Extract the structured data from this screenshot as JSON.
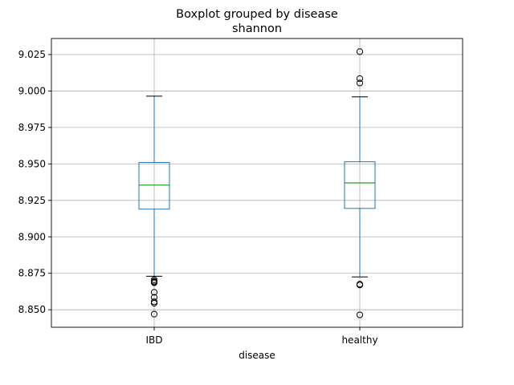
{
  "chart_data": {
    "type": "boxplot",
    "title_line1": "Boxplot grouped by disease",
    "title_line2": "shannon",
    "xlabel": "disease",
    "ylabel": "",
    "ylim": [
      8.838,
      9.036
    ],
    "yticks": [
      8.85,
      8.875,
      8.9,
      8.925,
      8.95,
      8.975,
      9.0,
      9.025
    ],
    "ytick_labels": [
      "8.850",
      "8.875",
      "8.900",
      "8.925",
      "8.950",
      "8.975",
      "9.000",
      "9.025"
    ],
    "grid": true,
    "categories": [
      "IBD",
      "healthy"
    ],
    "boxes": [
      {
        "category": "IBD",
        "whisker_low": 8.873,
        "q1": 8.919,
        "median": 8.9355,
        "q3": 8.951,
        "whisker_high": 8.9965,
        "outliers": [
          8.8705,
          8.8695,
          8.869,
          8.8685,
          8.862,
          8.8585,
          8.8555,
          8.8545,
          8.847
        ]
      },
      {
        "category": "healthy",
        "whisker_low": 8.8725,
        "q1": 8.9195,
        "median": 8.937,
        "q3": 8.9515,
        "whisker_high": 8.996,
        "outliers": [
          9.027,
          9.0085,
          9.0055,
          8.8675,
          8.867,
          8.8465
        ]
      }
    ],
    "colors": {
      "box": "#1f77b4",
      "median": "#2ca02c",
      "whisker_cap": "#000000",
      "outlier": "#000000"
    }
  }
}
